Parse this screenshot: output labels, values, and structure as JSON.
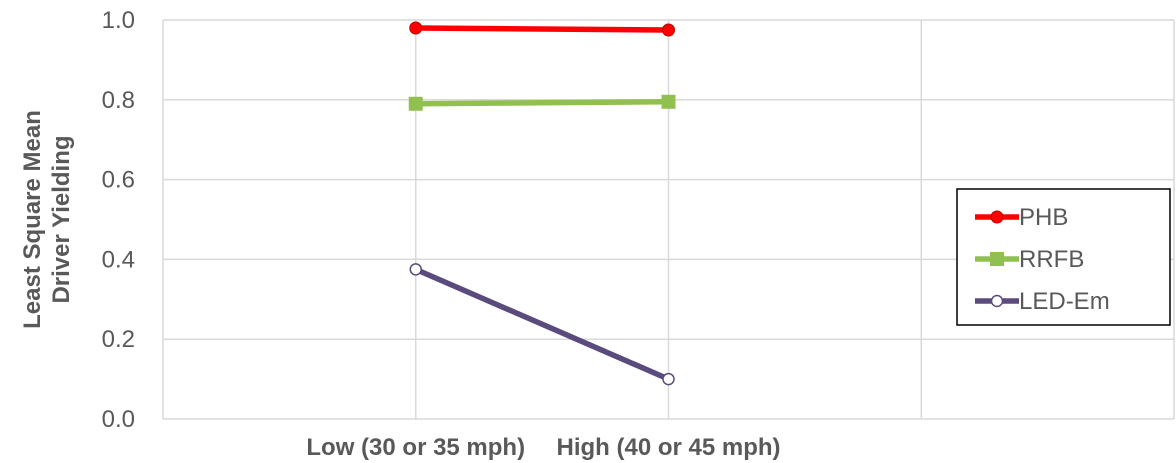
{
  "chart_data": {
    "type": "line",
    "categories": [
      "Low (30 or 35 mph)",
      "High (40 or 45 mph)"
    ],
    "ylabel_lines": [
      "Least Square Mean",
      "Driver Yielding"
    ],
    "ylim": [
      0,
      1
    ],
    "yticks": [
      0.0,
      0.2,
      0.4,
      0.6,
      0.8,
      1.0
    ],
    "ytick_labels": [
      "0.0",
      "0.2",
      "0.4",
      "0.6",
      "0.8",
      "1.0"
    ],
    "grid": true,
    "legend_position": "right",
    "series": [
      {
        "name": "PHB",
        "values": [
          0.98,
          0.975
        ],
        "color": "#ff0000",
        "marker": "filled-circle"
      },
      {
        "name": "RRFB",
        "values": [
          0.79,
          0.795
        ],
        "color": "#92c050",
        "marker": "filled-square"
      },
      {
        "name": "LED-Em",
        "values": [
          0.375,
          0.1
        ],
        "color": "#5b4a7c",
        "marker": "hollow-circle"
      }
    ]
  }
}
